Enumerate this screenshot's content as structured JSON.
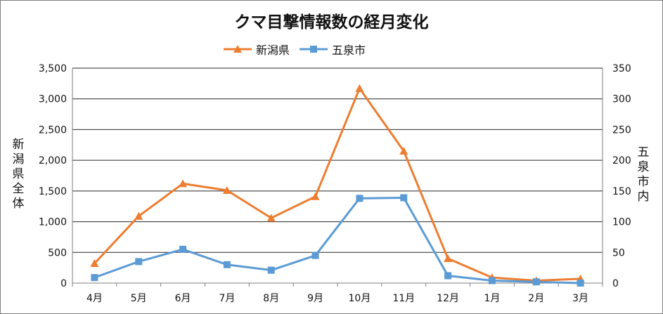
{
  "chart_data": {
    "type": "line",
    "title": "クマ目撃情報数の経月変化",
    "categories": [
      "4月",
      "5月",
      "6月",
      "7月",
      "8月",
      "9月",
      "10月",
      "11月",
      "12月",
      "1月",
      "2月",
      "3月"
    ],
    "series": [
      {
        "name": "新潟県",
        "axis": "left",
        "color": "#ED7D31",
        "marker": "triangle",
        "values": [
          320,
          1090,
          1620,
          1510,
          1060,
          1410,
          3170,
          2150,
          400,
          90,
          40,
          70
        ]
      },
      {
        "name": "五泉市",
        "axis": "right",
        "color": "#5B9BD5",
        "marker": "square",
        "values": [
          9,
          35,
          55,
          30,
          21,
          45,
          138,
          139,
          12,
          4,
          2,
          0
        ]
      }
    ],
    "left_axis": {
      "label": "新潟県全体",
      "min": 0,
      "max": 3500,
      "step": 500,
      "ticks": [
        "0",
        "500",
        "1,000",
        "1,500",
        "2,000",
        "2,500",
        "3,000",
        "3,500"
      ]
    },
    "right_axis": {
      "label": "五泉市内",
      "min": 0,
      "max": 350,
      "step": 50,
      "ticks": [
        "0",
        "50",
        "100",
        "150",
        "200",
        "250",
        "300",
        "350"
      ]
    },
    "grid": true,
    "legend_position": "top-center"
  }
}
